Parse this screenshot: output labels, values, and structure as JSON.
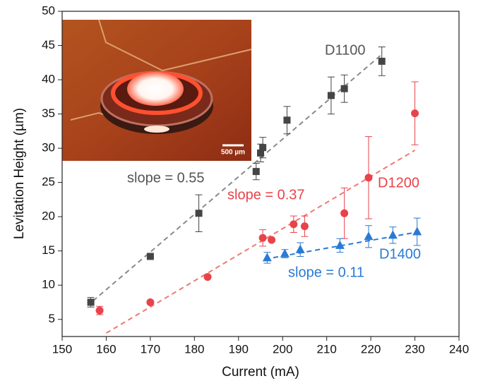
{
  "chart_data": {
    "type": "scatter",
    "x_label": "Current (mA)",
    "y_label": "Levitation Height (µm)",
    "xlim": [
      150,
      240
    ],
    "xticks": [
      150,
      160,
      170,
      180,
      190,
      200,
      210,
      220,
      230,
      240
    ],
    "ylim": [
      2.5,
      50
    ],
    "yticks": [
      5,
      10,
      15,
      20,
      25,
      30,
      35,
      40,
      45,
      50
    ],
    "series": [
      {
        "marker": "square",
        "color": "#454545",
        "fit_color": "#8a8a8a",
        "x": [
          156.5,
          170,
          181,
          194,
          195,
          195.5,
          201,
          211,
          214,
          222.5
        ],
        "values": [
          7.5,
          14.2,
          20.5,
          26.6,
          29.3,
          30.1,
          34.1,
          37.7,
          38.7,
          42.7
        ],
        "errors": [
          0.7,
          0,
          2.7,
          1.2,
          1.3,
          1.5,
          2,
          2.7,
          2,
          2.1
        ],
        "fit_x": [
          157,
          222.5
        ],
        "fit_values": [
          7.7,
          43.7
        ]
      },
      {
        "marker": "circle",
        "color": "#e8434a",
        "fit_color": "#ee7a72",
        "x": [
          158.5,
          170,
          183,
          195.5,
          197.5,
          202.5,
          205,
          214,
          219.5,
          230
        ],
        "values": [
          6.3,
          7.5,
          11.2,
          16.9,
          16.6,
          18.9,
          18.6,
          20.5,
          25.7,
          35.1
        ],
        "errors": [
          0.6,
          0,
          0,
          1.2,
          0,
          1.2,
          1.5,
          3.7,
          6,
          4.6
        ],
        "fit_x": [
          160,
          230
        ],
        "fit_values": [
          3,
          29.7
        ]
      },
      {
        "marker": "triangle",
        "color": "#2a7ad5",
        "fit_color": "#2a7ad5",
        "x": [
          196.5,
          200.5,
          204,
          213,
          219.5,
          225,
          230.5
        ],
        "values": [
          14,
          14.6,
          15.2,
          15.8,
          17.1,
          17.3,
          17.8
        ],
        "errors": [
          0.8,
          0.6,
          1,
          1,
          1.6,
          1.2,
          2
        ],
        "fit_x": [
          196,
          231
        ],
        "fit_values": [
          13.8,
          17.8
        ]
      }
    ],
    "annotations": [
      {
        "text": "D1100",
        "color": "#555555"
      },
      {
        "text": "slope = 0.55",
        "color": "#555555"
      },
      {
        "text": "slope = 0.37",
        "color": "#e8434a"
      },
      {
        "text": "D1200",
        "color": "#e8434a"
      },
      {
        "text": "D1400",
        "color": "#2a7ad5"
      },
      {
        "text": "slope = 0.11",
        "color": "#2a7ad5"
      }
    ],
    "inset": {
      "scale_label": "500 µm"
    }
  }
}
